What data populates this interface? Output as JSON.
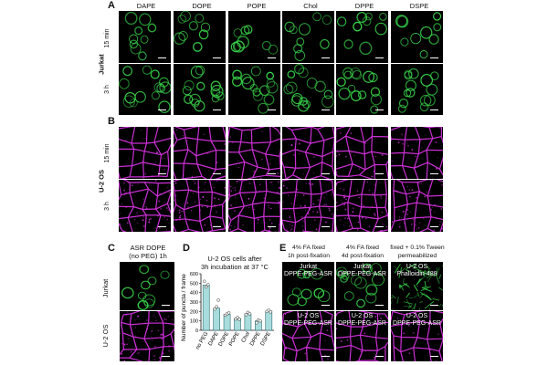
{
  "panel_a": {
    "letter": "A",
    "group_label": "Jurkat",
    "rows": [
      "15 min",
      "3 h"
    ],
    "columns": [
      "DAPE",
      "DOPE",
      "POPE",
      "Chol",
      "DPPE",
      "DSPE"
    ]
  },
  "panel_b": {
    "letter": "B",
    "group_label": "U-2 OS",
    "rows": [
      "15 min",
      "3 h"
    ]
  },
  "panel_c": {
    "letter": "C",
    "title_line1": "ASR DOPE",
    "title_line2": "(no PEG) 1h",
    "rows": [
      "Jurkat",
      "U-2 OS"
    ]
  },
  "panel_d": {
    "letter": "D",
    "title_line1": "U-2 OS cells after",
    "title_line2": "3h incubation at 37 °C"
  },
  "panel_e": {
    "letter": "E",
    "columns": [
      {
        "header_line1": "4% FA fixed",
        "header_line2": "1h post-fixation",
        "top_line1": "Jurkat",
        "top_line2": "DPPE-PEG-ASR",
        "bottom_line1": "U-2 OS",
        "bottom_line2": "DPPE-PEG-ASR"
      },
      {
        "header_line1": "4% FA fixed",
        "header_line2": "4d post-fixation",
        "top_line1": "Jurkat",
        "top_line2": "DPPE-PEG-ASR",
        "bottom_line1": "U-2 OS",
        "bottom_line2": "DPPE-PEG-ASR"
      },
      {
        "header_line1": "fixed + 0.1% Tween",
        "header_line2": "permeabilized",
        "top_line1": "U-2 OS",
        "top_line2": "Phalloidin-488",
        "bottom_line1": "U-2 OS",
        "bottom_line2": "DPPE-PEG-ASR"
      }
    ]
  },
  "colors": {
    "green_stain": "#39d44a",
    "magenta_stain": "#cc2fd6",
    "bar_fill": "#a9dcdc",
    "bar_stroke": "#2f6f73"
  },
  "chart_data": {
    "type": "bar",
    "title": "U-2 OS cells after 3h incubation at 37 °C",
    "xlabel": "",
    "ylabel": "Number of puncta / frame",
    "categories": [
      "no PEG",
      "DAPE",
      "DOPE",
      "POPE",
      "Chol",
      "DPPE",
      "DSPE"
    ],
    "values": [
      480,
      235,
      170,
      125,
      175,
      100,
      205
    ],
    "points": [
      [
        520,
        460,
        485
      ],
      [
        225,
        250,
        320
      ],
      [
        160,
        175,
        185
      ],
      [
        120,
        135,
        115
      ],
      [
        165,
        190,
        175
      ],
      [
        80,
        110,
        100
      ],
      [
        200,
        215,
        195
      ]
    ],
    "ylim": [
      0,
      600
    ],
    "yticks": [
      0,
      100,
      200,
      300,
      400,
      500,
      600
    ],
    "grid": false
  }
}
